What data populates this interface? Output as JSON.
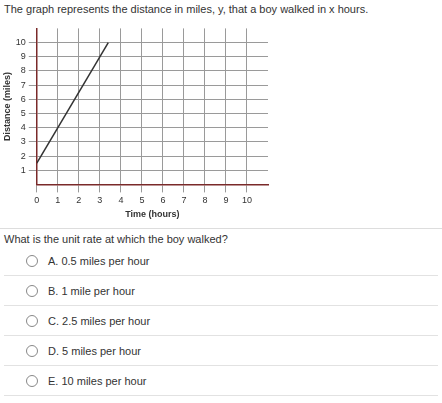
{
  "header": {
    "text": "The graph represents the distance in miles, y, that a boy walked in x hours."
  },
  "chart_data": {
    "type": "line",
    "x_label": "Time (hours)",
    "y_label": "Distance (miles)",
    "x": [
      0,
      3.4
    ],
    "values": [
      1.5,
      10
    ],
    "color": "#333333",
    "xlim": [
      0,
      11
    ],
    "xticks": [
      0,
      1,
      2,
      3,
      4,
      5,
      6,
      7,
      8,
      9,
      10
    ],
    "ylim": [
      0,
      11
    ],
    "yticks": [
      1,
      2,
      3,
      4,
      5,
      6,
      7,
      8,
      9,
      10
    ],
    "grid": true
  },
  "question": "What is the unit rate at which the boy walked?",
  "options": [
    "A. 0.5 miles per hour",
    "B. 1 mile per hour",
    "C. 2.5 miles per hour",
    "D. 5 miles per hour",
    "E. 10 miles per hour"
  ]
}
